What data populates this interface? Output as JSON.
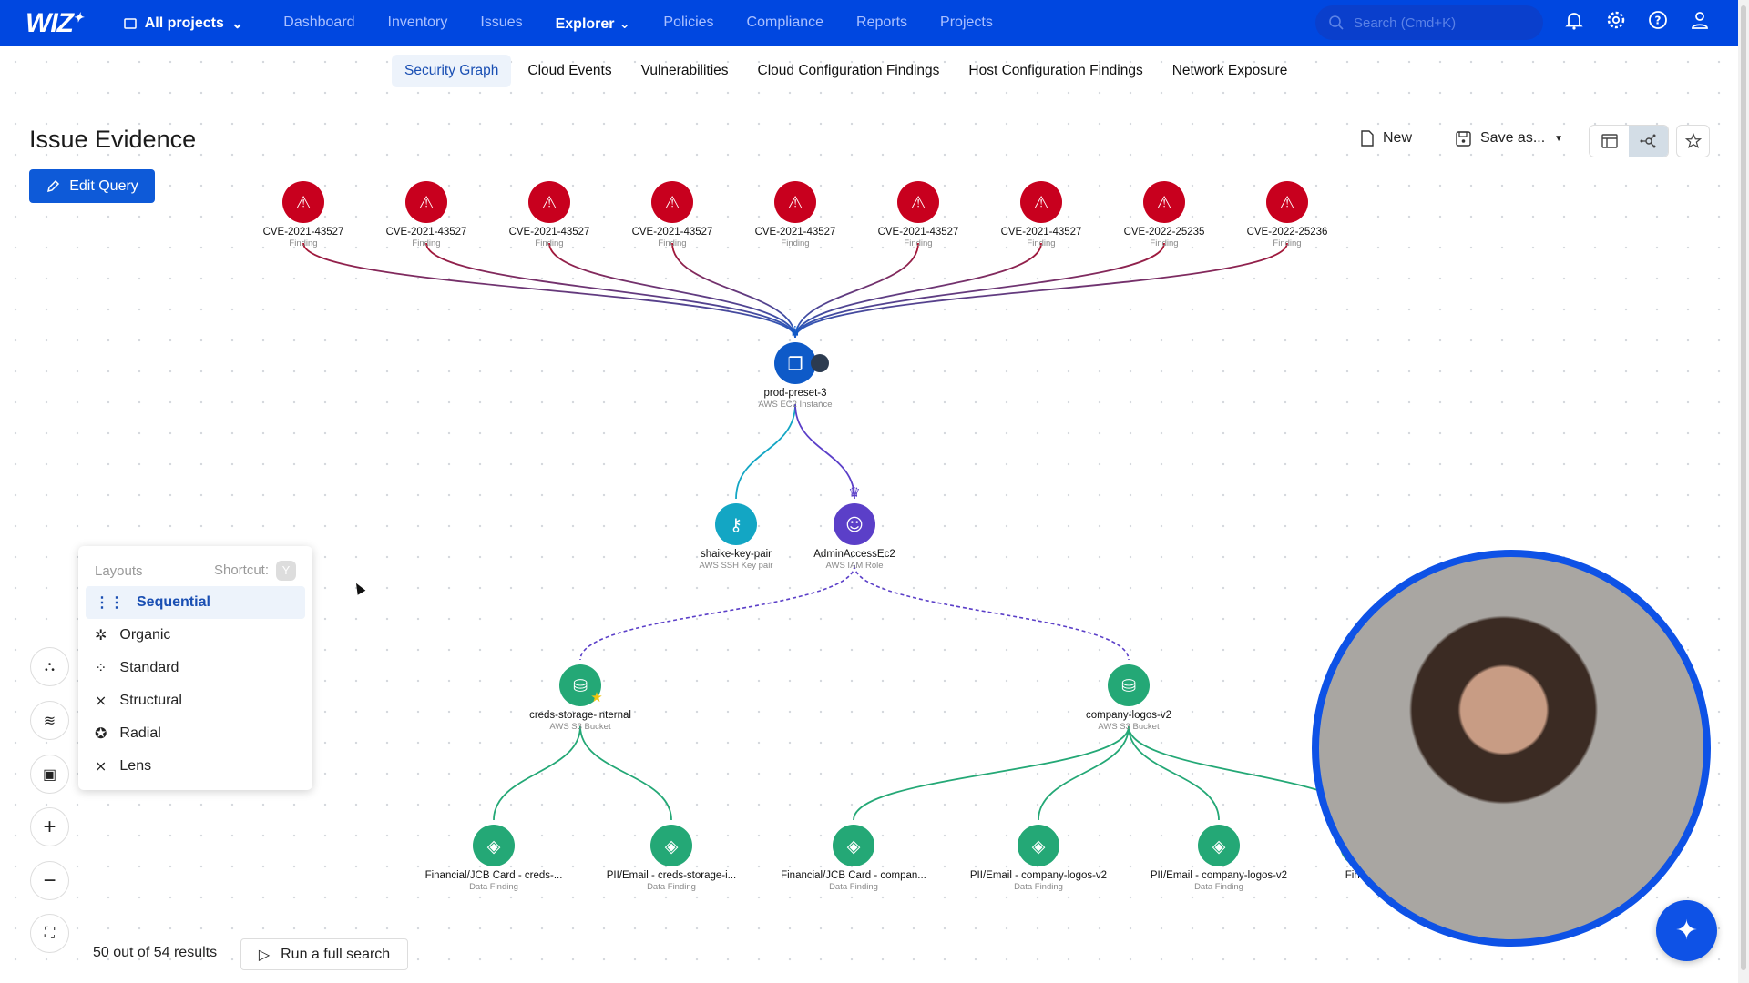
{
  "topbar": {
    "logo": "WIZ",
    "projects": "All projects",
    "nav": [
      "Dashboard",
      "Inventory",
      "Issues",
      "Explorer",
      "Policies",
      "Compliance",
      "Reports",
      "Projects"
    ],
    "active_nav": "Explorer",
    "search_placeholder": "Search (Cmd+K)",
    "icons": [
      "bell-icon",
      "gear-icon",
      "help-icon",
      "user-icon"
    ],
    "brand_color": "#0047e0"
  },
  "subtabs": [
    "Security Graph",
    "Cloud Events",
    "Vulnerabilities",
    "Cloud Configuration Findings",
    "Host Configuration Findings",
    "Network Exposure"
  ],
  "page": {
    "title": "Issue Evidence",
    "edit_query": "Edit Query",
    "new": "New",
    "save_as": "Save as..."
  },
  "graph": {
    "nodes": [
      {
        "id": "f1",
        "label": "CVE-2021-43527",
        "type": "Finding",
        "kind": "finding"
      },
      {
        "id": "f2",
        "label": "CVE-2021-43527",
        "type": "Finding",
        "kind": "finding"
      },
      {
        "id": "f3",
        "label": "CVE-2021-43527",
        "type": "Finding",
        "kind": "finding"
      },
      {
        "id": "f4",
        "label": "CVE-2021-43527",
        "type": "Finding",
        "kind": "finding"
      },
      {
        "id": "f5",
        "label": "CVE-2021-43527",
        "type": "Finding",
        "kind": "finding"
      },
      {
        "id": "f6",
        "label": "CVE-2021-43527",
        "type": "Finding",
        "kind": "finding"
      },
      {
        "id": "f7",
        "label": "CVE-2021-43527",
        "type": "Finding",
        "kind": "finding"
      },
      {
        "id": "f8",
        "label": "CVE-2022-25235",
        "type": "Finding",
        "kind": "finding"
      },
      {
        "id": "f9",
        "label": "CVE-2022-25236",
        "type": "Finding",
        "kind": "finding"
      },
      {
        "id": "vm",
        "label": "prod-preset-3",
        "type": "AWS EC2 Instance",
        "kind": "vm",
        "crown": true
      },
      {
        "id": "key",
        "label": "shaike-key-pair",
        "type": "AWS SSH Key pair",
        "kind": "key"
      },
      {
        "id": "role",
        "label": "AdminAccessEc2",
        "type": "AWS IAM Role",
        "kind": "role",
        "crown": true
      },
      {
        "id": "b1",
        "label": "creds-storage-internal",
        "type": "AWS S3 Bucket",
        "kind": "bucket",
        "starred": true
      },
      {
        "id": "b2",
        "label": "company-logos-v2",
        "type": "AWS S3 Bucket",
        "kind": "bucket"
      },
      {
        "id": "d1",
        "label": "Financial/JCB Card - creds-...",
        "type": "Data Finding",
        "kind": "data"
      },
      {
        "id": "d2",
        "label": "PII/Email - creds-storage-i...",
        "type": "Data Finding",
        "kind": "data"
      },
      {
        "id": "d3",
        "label": "Financial/JCB Card - compan...",
        "type": "Data Finding",
        "kind": "data"
      },
      {
        "id": "d4",
        "label": "PII/Email - company-logos-v2",
        "type": "Data Finding",
        "kind": "data"
      },
      {
        "id": "d5",
        "label": "PII/Email - company-logos-v2",
        "type": "Data Finding",
        "kind": "data"
      },
      {
        "id": "d6",
        "label": "Financ",
        "type": "",
        "kind": "data"
      }
    ],
    "edges": [
      [
        "f1",
        "vm"
      ],
      [
        "f2",
        "vm"
      ],
      [
        "f3",
        "vm"
      ],
      [
        "f4",
        "vm"
      ],
      [
        "f5",
        "vm"
      ],
      [
        "f6",
        "vm"
      ],
      [
        "f7",
        "vm"
      ],
      [
        "f8",
        "vm"
      ],
      [
        "f9",
        "vm"
      ],
      [
        "vm",
        "key"
      ],
      [
        "vm",
        "role"
      ],
      [
        "role",
        "b1",
        "dashed"
      ],
      [
        "role",
        "b2",
        "dashed"
      ],
      [
        "b1",
        "d1"
      ],
      [
        "b1",
        "d2"
      ],
      [
        "b2",
        "d3"
      ],
      [
        "b2",
        "d4"
      ],
      [
        "b2",
        "d5"
      ],
      [
        "b2",
        "d6"
      ]
    ],
    "colors": {
      "finding": "#c8001e",
      "vm": "#0e5ac8",
      "key": "#13a6c4",
      "role": "#5b3fc8",
      "bucket": "#24a876",
      "data": "#24a876"
    }
  },
  "layouts_menu": {
    "title": "Layouts",
    "shortcut_label": "Shortcut:",
    "shortcut_key": "Y",
    "items": [
      "Sequential",
      "Organic",
      "Standard",
      "Structural",
      "Radial",
      "Lens"
    ],
    "selected": "Sequential"
  },
  "controls": [
    "hierarchy-icon",
    "layers-icon",
    "minimap-icon",
    "zoom-in-icon",
    "zoom-out-icon",
    "fit-screen-icon"
  ],
  "footer": {
    "results": "50 out of 54 results",
    "run_full_search": "Run a full search"
  }
}
